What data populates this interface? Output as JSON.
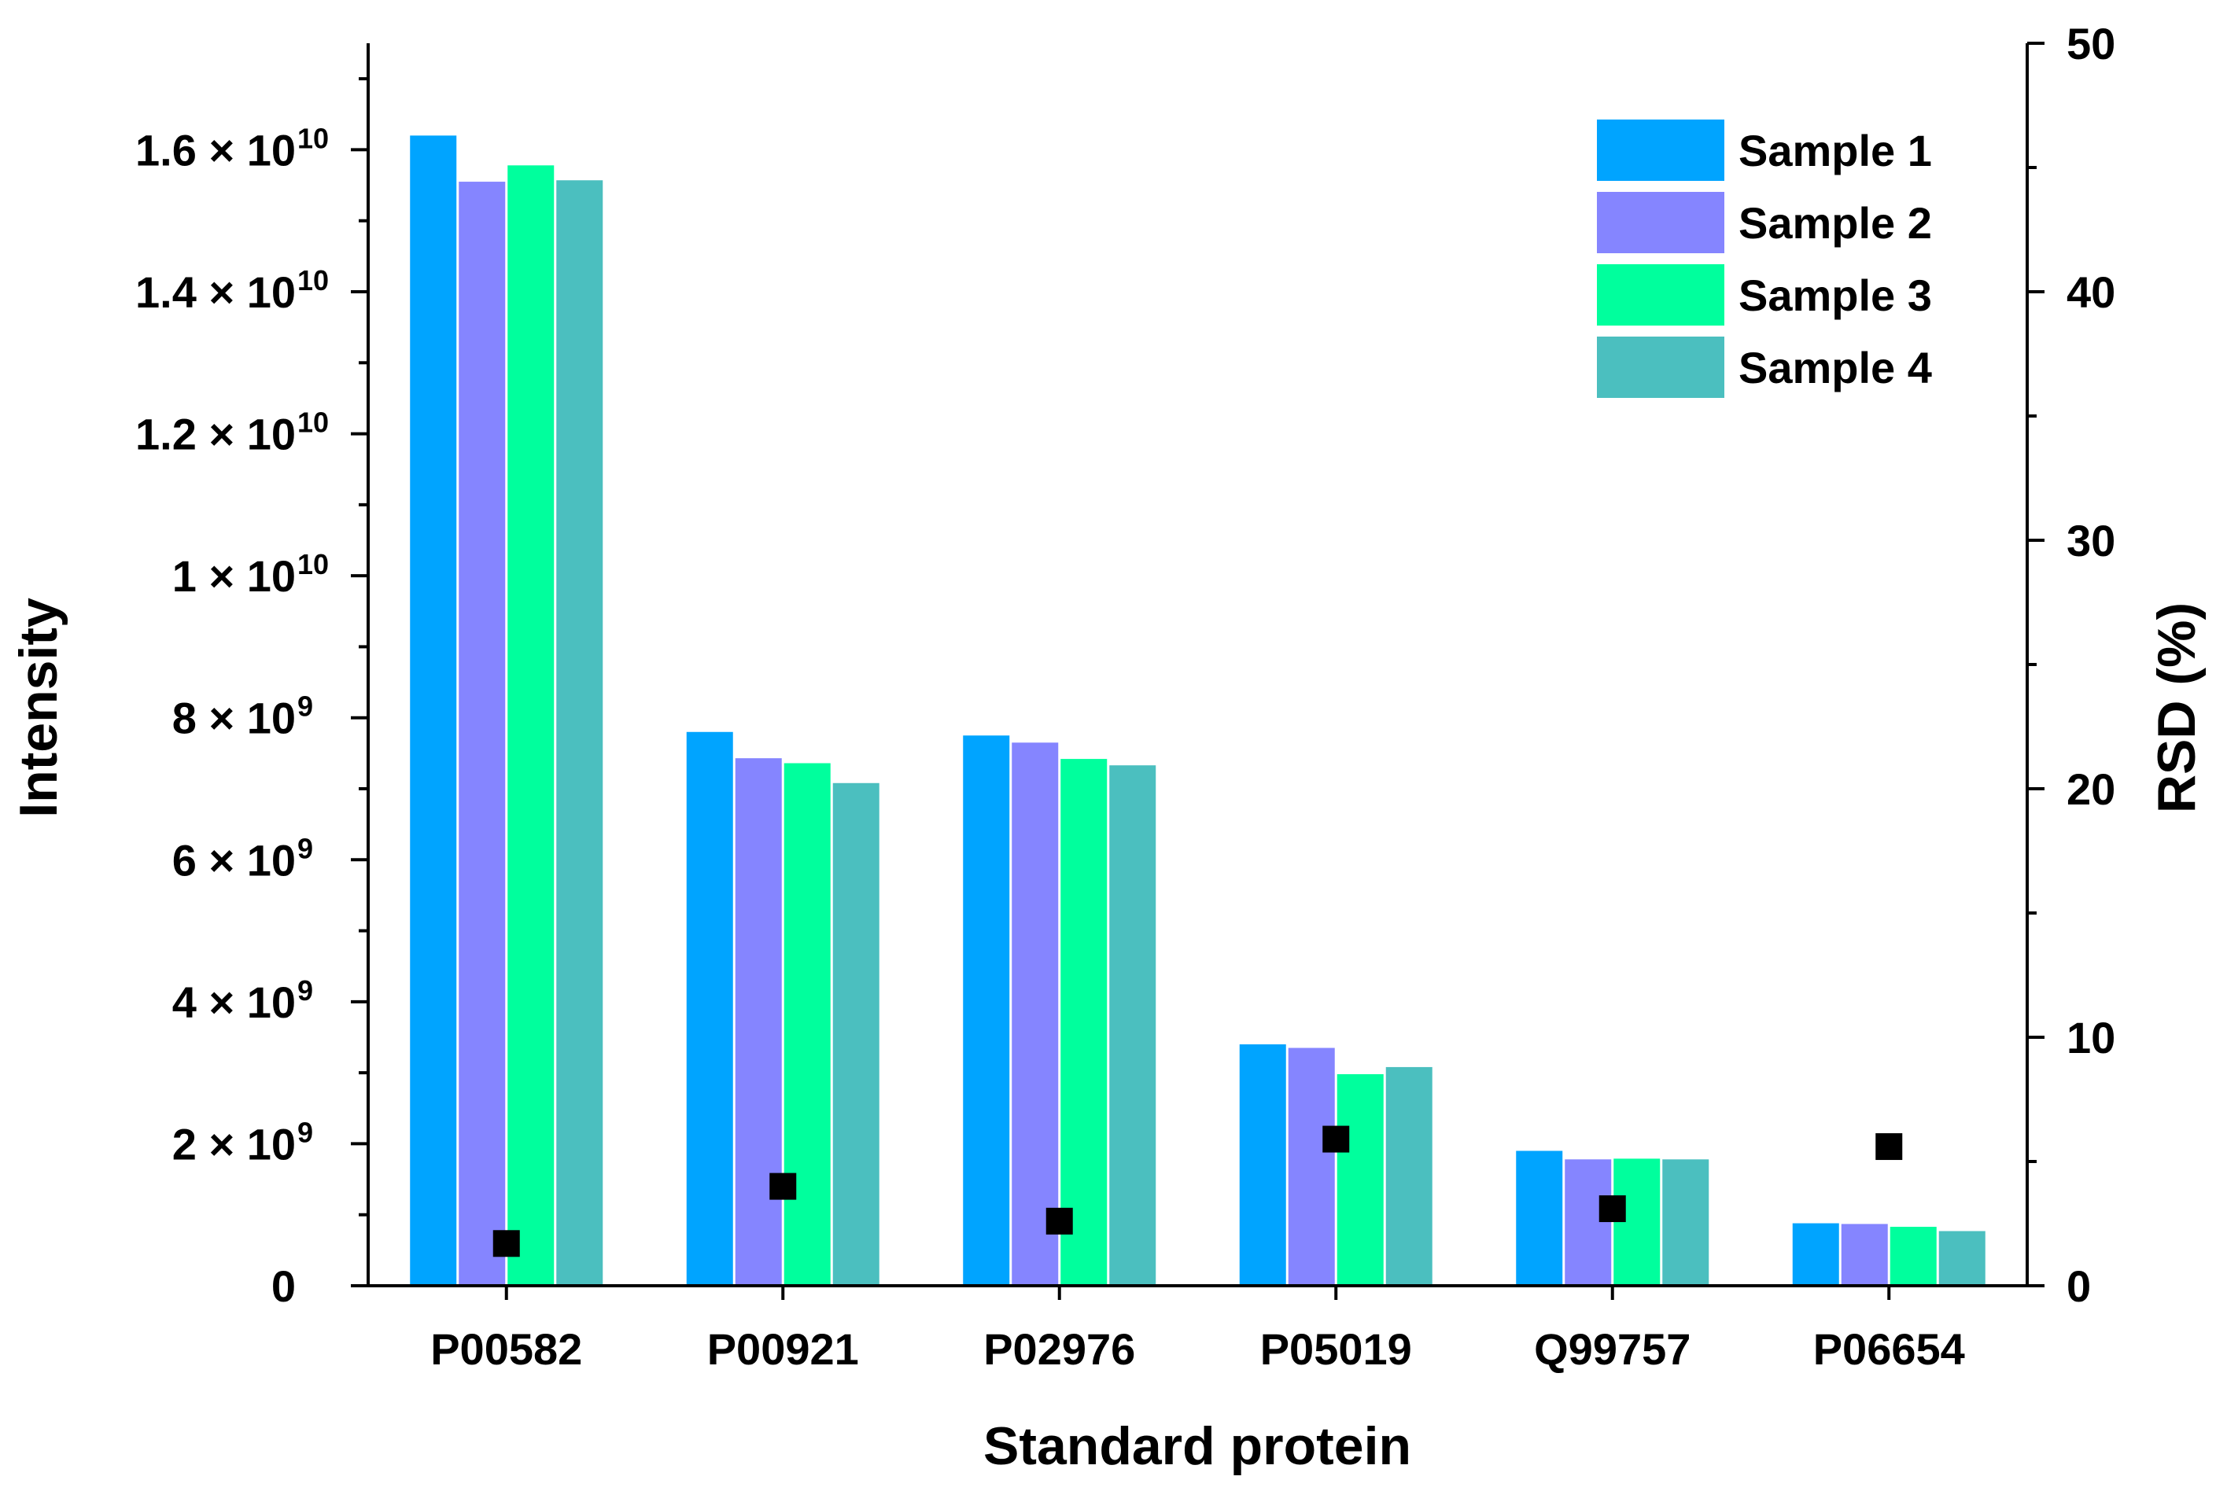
{
  "chart_data": {
    "type": "bar",
    "title": "",
    "xlabel": "Standard protein",
    "ylabel": "Intensity",
    "y2label": "RSD (%)",
    "categories": [
      "P00582",
      "P00921",
      "P02976",
      "P05019",
      "Q99757",
      "P06654"
    ],
    "ylim": [
      0,
      17500000000
    ],
    "y2lim": [
      0,
      50
    ],
    "y_ticks": [
      {
        "value": 0,
        "mantissa": "0",
        "exponent": ""
      },
      {
        "value": 2000000000,
        "mantissa": "2 × 10",
        "exponent": "9"
      },
      {
        "value": 4000000000,
        "mantissa": "4 × 10",
        "exponent": "9"
      },
      {
        "value": 6000000000,
        "mantissa": "6 × 10",
        "exponent": "9"
      },
      {
        "value": 8000000000,
        "mantissa": "8 × 10",
        "exponent": "9"
      },
      {
        "value": 10000000000,
        "mantissa": "1 × 10",
        "exponent": "10"
      },
      {
        "value": 12000000000,
        "mantissa": "1.2 × 10",
        "exponent": "10"
      },
      {
        "value": 14000000000,
        "mantissa": "1.4 × 10",
        "exponent": "10"
      },
      {
        "value": 16000000000,
        "mantissa": "1.6 × 10",
        "exponent": "10"
      }
    ],
    "y2_ticks": [
      0,
      10,
      20,
      30,
      40,
      50
    ],
    "series": [
      {
        "name": "Sample 1",
        "color": "#00A4FF",
        "values": [
          16200000000,
          7800000000,
          7750000000,
          3400000000,
          1900000000,
          880000000
        ]
      },
      {
        "name": "Sample 2",
        "color": "#8585FF",
        "values": [
          15550000000,
          7430000000,
          7650000000,
          3350000000,
          1780000000,
          870000000
        ]
      },
      {
        "name": "Sample 3",
        "color": "#00FF9D",
        "values": [
          15780000000,
          7360000000,
          7420000000,
          2980000000,
          1790000000,
          830000000
        ]
      },
      {
        "name": "Sample 4",
        "color": "#4BBFBF",
        "values": [
          15570000000,
          7080000000,
          7330000000,
          3080000000,
          1780000000,
          770000000
        ]
      }
    ],
    "rsd": {
      "name": "RSD",
      "color": "#000000",
      "values": [
        1.7,
        4.0,
        2.6,
        5.9,
        3.1,
        5.6
      ]
    },
    "legend_position": "top-right",
    "grid": false
  }
}
